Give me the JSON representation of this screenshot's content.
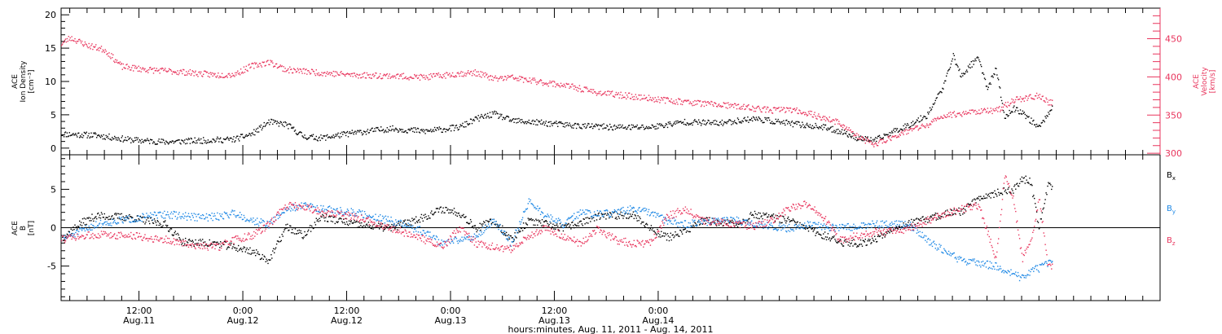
{
  "chart_data": [
    {
      "panel": "top",
      "type": "scatter",
      "title": "",
      "left_axis": {
        "label_lines": [
          "ACE",
          "Ion Density",
          "[cm⁻³]"
        ],
        "ylim": [
          -1,
          21
        ],
        "ticks": [
          0,
          5,
          10,
          15,
          20
        ],
        "color": "#000000"
      },
      "right_axis": {
        "label_lines": [
          "ACE",
          "Velocity",
          "[km/s]"
        ],
        "ylim": [
          298,
          490
        ],
        "ticks": [
          300,
          350,
          400,
          450
        ],
        "color": "#e8355d"
      },
      "series": [
        {
          "name": "",
          "axis": "left",
          "color": "#000000",
          "points": [
            [
              0,
              2.2
            ],
            [
              4,
              2.0
            ],
            [
              8,
              1.3
            ],
            [
              12,
              1.0
            ],
            [
              16,
              1.2
            ],
            [
              20,
              1.4
            ],
            [
              22,
              2.2
            ],
            [
              24,
              4.0
            ],
            [
              26,
              3.6
            ],
            [
              28,
              1.8
            ],
            [
              30,
              1.6
            ],
            [
              34,
              2.4
            ],
            [
              38,
              3.0
            ],
            [
              42,
              2.6
            ],
            [
              46,
              3.2
            ],
            [
              48,
              4.5
            ],
            [
              50,
              5.2
            ],
            [
              52,
              4.2
            ],
            [
              56,
              3.8
            ],
            [
              60,
              3.4
            ],
            [
              64,
              3.2
            ],
            [
              68,
              3.2
            ],
            [
              70,
              3.6
            ],
            [
              72,
              4.0
            ],
            [
              76,
              3.8
            ],
            [
              80,
              4.5
            ],
            [
              84,
              3.8
            ],
            [
              88,
              3.2
            ],
            [
              90,
              2.6
            ],
            [
              92,
              1.6
            ],
            [
              94,
              1.2
            ],
            [
              96,
              2.5
            ],
            [
              98,
              3.6
            ],
            [
              100,
              5.0
            ],
            [
              102,
              9.5
            ],
            [
              103,
              14.0
            ],
            [
              104,
              10.8
            ],
            [
              105,
              12.5
            ],
            [
              106,
              13.5
            ],
            [
              107,
              9.0
            ],
            [
              108,
              12.0
            ],
            [
              109,
              4.6
            ],
            [
              110,
              6.0
            ],
            [
              111,
              5.5
            ],
            [
              112,
              4.2
            ],
            [
              113,
              3.2
            ],
            [
              114,
              5.2
            ],
            [
              114.5,
              6.5
            ]
          ]
        },
        {
          "name": "",
          "axis": "right",
          "color": "#e8355d",
          "points": [
            [
              0,
              444
            ],
            [
              1,
              452
            ],
            [
              3,
              442
            ],
            [
              5,
              436
            ],
            [
              7,
              414
            ],
            [
              10,
              410
            ],
            [
              14,
              407
            ],
            [
              18,
              403
            ],
            [
              20,
              404
            ],
            [
              22,
              415
            ],
            [
              24,
              420
            ],
            [
              26,
              410
            ],
            [
              30,
              406
            ],
            [
              34,
              403
            ],
            [
              38,
              402
            ],
            [
              42,
              400
            ],
            [
              46,
              405
            ],
            [
              48,
              406
            ],
            [
              50,
              398
            ],
            [
              52,
              400
            ],
            [
              54,
              396
            ],
            [
              58,
              390
            ],
            [
              62,
              380
            ],
            [
              66,
              375
            ],
            [
              70,
              370
            ],
            [
              74,
              366
            ],
            [
              78,
              362
            ],
            [
              82,
              357
            ],
            [
              84,
              358
            ],
            [
              86,
              354
            ],
            [
              88,
              347
            ],
            [
              90,
              340
            ],
            [
              92,
              322
            ],
            [
              94,
              312
            ],
            [
              96,
              322
            ],
            [
              98,
              331
            ],
            [
              100,
              337
            ],
            [
              102,
              350
            ],
            [
              106,
              356
            ],
            [
              108,
              356
            ],
            [
              110,
              370
            ],
            [
              112,
              374
            ],
            [
              113,
              376
            ],
            [
              114,
              368
            ],
            [
              114.5,
              367
            ]
          ]
        }
      ]
    },
    {
      "panel": "bottom",
      "type": "scatter",
      "title": "",
      "left_axis": {
        "label_lines": [
          "ACE",
          "B",
          "[nT]"
        ],
        "ylim": [
          -9.5,
          9.5
        ],
        "ticks": [
          -5,
          0,
          5
        ]
      },
      "series": [
        {
          "name": "B_x",
          "label_main": "B",
          "label_sub": "x",
          "color": "#000000",
          "points": [
            [
              0,
              -1.4
            ],
            [
              2,
              0.5
            ],
            [
              4,
              1.6
            ],
            [
              8,
              1.4
            ],
            [
              12,
              0.5
            ],
            [
              14,
              -1.8
            ],
            [
              18,
              -2.0
            ],
            [
              20,
              -2.5
            ],
            [
              22,
              -3.0
            ],
            [
              24,
              -4.2
            ],
            [
              26,
              0.2
            ],
            [
              28,
              -1.0
            ],
            [
              30,
              1.5
            ],
            [
              34,
              0.5
            ],
            [
              38,
              0.0
            ],
            [
              42,
              1.5
            ],
            [
              44,
              2.5
            ],
            [
              46,
              2.0
            ],
            [
              48,
              0.0
            ],
            [
              50,
              1.0
            ],
            [
              52,
              -1.5
            ],
            [
              54,
              1.0
            ],
            [
              58,
              0.0
            ],
            [
              62,
              1.5
            ],
            [
              66,
              1.8
            ],
            [
              68,
              0.0
            ],
            [
              70,
              -1.2
            ],
            [
              72,
              -0.5
            ],
            [
              74,
              1.0
            ],
            [
              78,
              0.5
            ],
            [
              80,
              1.8
            ],
            [
              84,
              1.0
            ],
            [
              86,
              0.0
            ],
            [
              90,
              -1.8
            ],
            [
              92,
              -2.0
            ],
            [
              94,
              -1.5
            ],
            [
              96,
              0.0
            ],
            [
              100,
              1.2
            ],
            [
              102,
              1.8
            ],
            [
              104,
              2.2
            ],
            [
              106,
              4.0
            ],
            [
              108,
              4.6
            ],
            [
              110,
              5.0
            ],
            [
              111,
              6.5
            ],
            [
              112,
              6.0
            ],
            [
              113,
              0.0
            ],
            [
              114,
              5.6
            ],
            [
              114.5,
              5.4
            ]
          ]
        },
        {
          "name": "B_y",
          "label_main": "B",
          "label_sub": "y",
          "color": "#1e88e5",
          "points": [
            [
              0,
              -1.4
            ],
            [
              2,
              -0.5
            ],
            [
              4,
              0.5
            ],
            [
              8,
              1.2
            ],
            [
              12,
              1.8
            ],
            [
              16,
              1.4
            ],
            [
              18,
              1.5
            ],
            [
              20,
              2.0
            ],
            [
              22,
              1.0
            ],
            [
              24,
              0.5
            ],
            [
              26,
              2.5
            ],
            [
              28,
              3.0
            ],
            [
              30,
              2.5
            ],
            [
              34,
              2.0
            ],
            [
              38,
              1.0
            ],
            [
              42,
              -0.5
            ],
            [
              44,
              -2.0
            ],
            [
              46,
              -1.5
            ],
            [
              48,
              -1.0
            ],
            [
              50,
              1.0
            ],
            [
              52,
              -2.0
            ],
            [
              54,
              3.5
            ],
            [
              56,
              1.5
            ],
            [
              58,
              0.5
            ],
            [
              60,
              2.0
            ],
            [
              62,
              1.8
            ],
            [
              64,
              2.0
            ],
            [
              66,
              2.5
            ],
            [
              68,
              2.0
            ],
            [
              70,
              1.0
            ],
            [
              72,
              0.5
            ],
            [
              74,
              0.8
            ],
            [
              78,
              1.0
            ],
            [
              80,
              0.5
            ],
            [
              84,
              0.0
            ],
            [
              86,
              0.5
            ],
            [
              90,
              0.0
            ],
            [
              94,
              0.5
            ],
            [
              98,
              0.5
            ],
            [
              100,
              -1.5
            ],
            [
              102,
              -3.0
            ],
            [
              104,
              -4.2
            ],
            [
              106,
              -4.5
            ],
            [
              108,
              -5.0
            ],
            [
              110,
              -6.0
            ],
            [
              111,
              -6.5
            ],
            [
              112,
              -5.5
            ],
            [
              113,
              -5.2
            ],
            [
              114,
              -4.5
            ],
            [
              114.5,
              -4.0
            ]
          ]
        },
        {
          "name": "B_z",
          "label_main": "B",
          "label_sub": "z",
          "color": "#e8355d",
          "points": [
            [
              0,
              -1.4
            ],
            [
              2,
              -1.2
            ],
            [
              4,
              -0.8
            ],
            [
              8,
              -1.0
            ],
            [
              12,
              -1.5
            ],
            [
              14,
              -2.0
            ],
            [
              18,
              -2.5
            ],
            [
              20,
              -1.5
            ],
            [
              22,
              -1.0
            ],
            [
              24,
              0.5
            ],
            [
              26,
              3.0
            ],
            [
              28,
              2.8
            ],
            [
              30,
              2.0
            ],
            [
              34,
              1.5
            ],
            [
              38,
              0.0
            ],
            [
              42,
              -1.5
            ],
            [
              44,
              -2.5
            ],
            [
              46,
              0.0
            ],
            [
              48,
              -2.0
            ],
            [
              50,
              -2.5
            ],
            [
              52,
              -2.8
            ],
            [
              54,
              -1.0
            ],
            [
              56,
              0.0
            ],
            [
              58,
              -1.0
            ],
            [
              60,
              -2.0
            ],
            [
              62,
              0.0
            ],
            [
              64,
              -1.5
            ],
            [
              66,
              -2.0
            ],
            [
              68,
              -2.0
            ],
            [
              70,
              1.5
            ],
            [
              72,
              2.5
            ],
            [
              74,
              1.0
            ],
            [
              76,
              0.8
            ],
            [
              78,
              0.5
            ],
            [
              80,
              0.2
            ],
            [
              82,
              1.0
            ],
            [
              84,
              2.5
            ],
            [
              86,
              3.2
            ],
            [
              88,
              1.5
            ],
            [
              90,
              -1.5
            ],
            [
              92,
              -1.0
            ],
            [
              94,
              -0.5
            ],
            [
              96,
              -0.5
            ],
            [
              98,
              0.0
            ],
            [
              100,
              1.0
            ],
            [
              102,
              1.8
            ],
            [
              104,
              2.5
            ],
            [
              106,
              3.0
            ],
            [
              108,
              -4.0
            ],
            [
              109,
              7.0
            ],
            [
              110,
              4.0
            ],
            [
              111,
              -4.0
            ],
            [
              112,
              -2.0
            ],
            [
              113,
              4.0
            ],
            [
              114,
              -5.0
            ],
            [
              114.5,
              -5.0
            ]
          ]
        }
      ]
    }
  ],
  "time_axis": {
    "xlim_hours": [
      0,
      127
    ],
    "major_ticks": [
      {
        "h": 9,
        "time": "12:00",
        "date": "Aug.11"
      },
      {
        "h": 21,
        "time": "0:00",
        "date": "Aug.12"
      },
      {
        "h": 33,
        "time": "12:00",
        "date": "Aug.12"
      },
      {
        "h": 45,
        "time": "0:00",
        "date": "Aug.13"
      },
      {
        "h": 57,
        "time": "12:00",
        "date": "Aug.13"
      },
      {
        "h": 69,
        "time": "0:00",
        "date": "Aug.14"
      }
    ],
    "title": "hours:minutes, Aug. 11, 2011 - Aug. 14, 2011"
  }
}
